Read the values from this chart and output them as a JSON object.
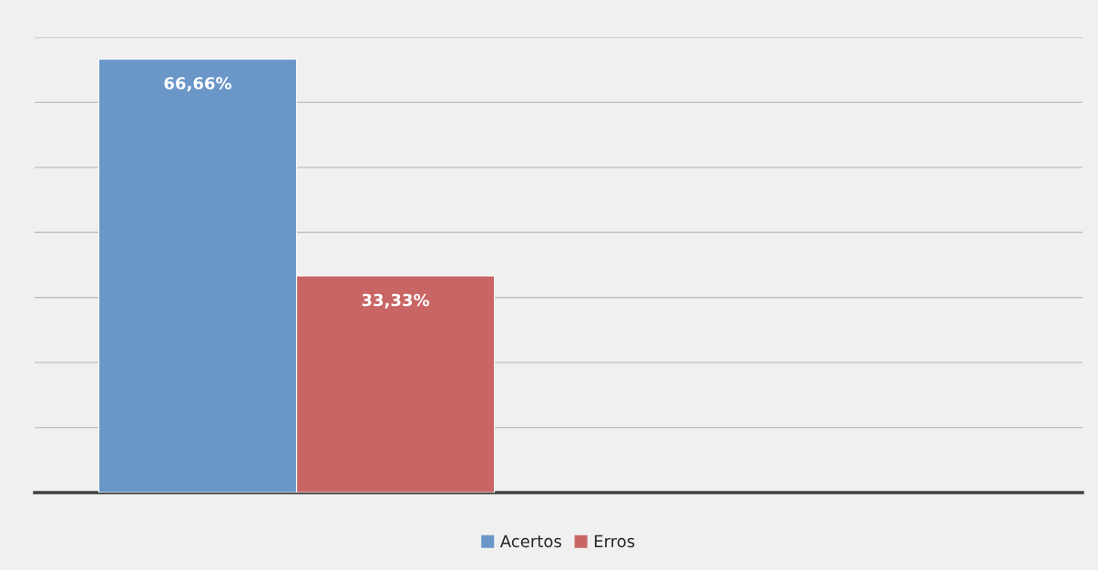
{
  "chart_data": {
    "type": "bar",
    "categories": [
      null
    ],
    "series": [
      {
        "name": "Acertos",
        "color": "#6a96c8",
        "values": [
          66.66
        ],
        "value_labels": [
          "66,66%"
        ]
      },
      {
        "name": "Erros",
        "color": "#c96665",
        "values": [
          33.33
        ],
        "value_labels": [
          "33,33%"
        ]
      }
    ],
    "ylim": [
      0,
      70
    ],
    "yticks": [
      {
        "value": 0,
        "label": null
      },
      {
        "value": 10,
        "label": null
      },
      {
        "value": 20,
        "label": null
      },
      {
        "value": 30,
        "label": null
      },
      {
        "value": 40,
        "label": null
      },
      {
        "value": 50,
        "label": null
      },
      {
        "value": 60,
        "label": null
      },
      {
        "value": 70,
        "label": null
      }
    ],
    "grid": "y",
    "legend": "bottom"
  }
}
